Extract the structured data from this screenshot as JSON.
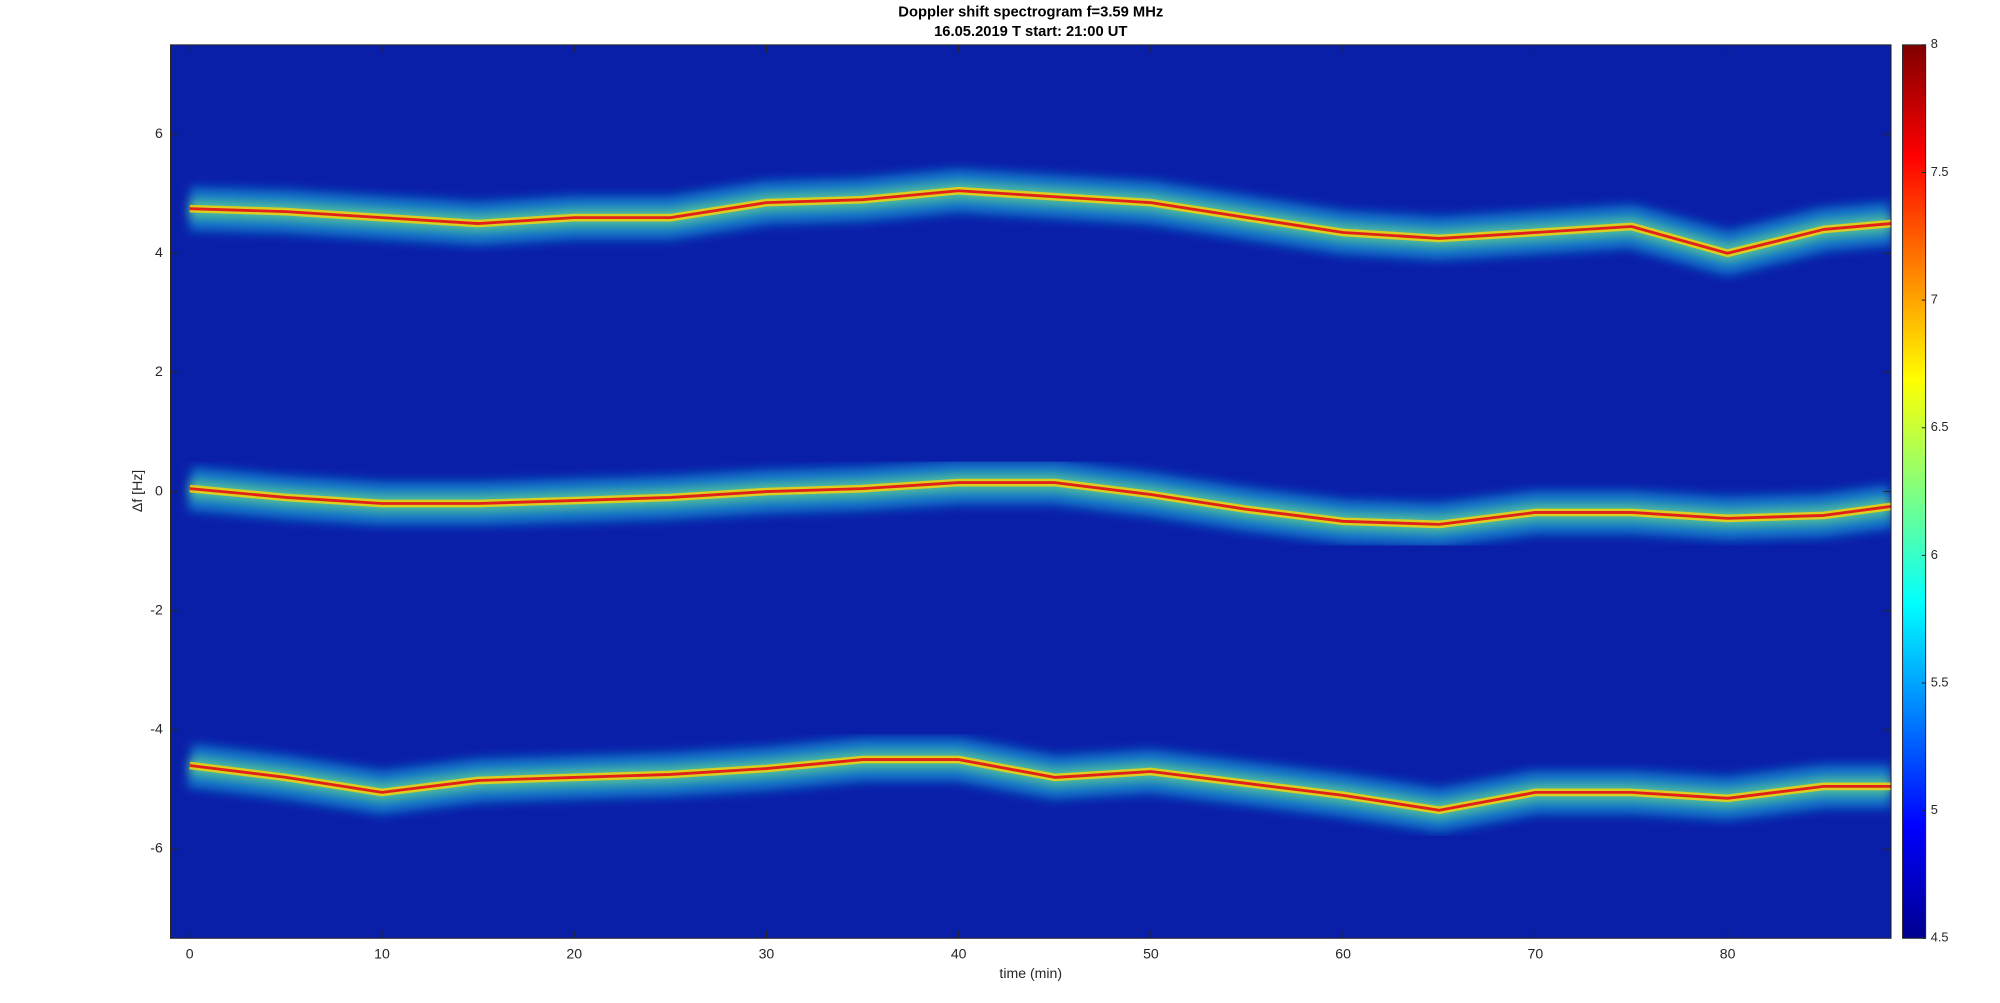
{
  "chart_data": {
    "type": "line",
    "title": "Doppler shift spectrogram f=3.59 MHz",
    "subtitle": "16.05.2019   T start: 21:00 UT",
    "xlabel": "time (min)",
    "ylabel": "Δf [Hz]",
    "x": [
      0,
      5,
      10,
      15,
      20,
      25,
      30,
      35,
      40,
      45,
      50,
      55,
      60,
      65,
      70,
      75,
      80,
      85,
      88.5
    ],
    "series": [
      {
        "color": "#e0201a",
        "values": [
          4.75,
          4.7,
          4.6,
          4.5,
          4.6,
          4.6,
          4.85,
          4.9,
          5.05,
          4.95,
          4.85,
          4.6,
          4.35,
          4.25,
          4.35,
          4.45,
          4.0,
          4.4,
          4.5
        ]
      },
      {
        "color": "#e0201a",
        "values": [
          0.05,
          -0.1,
          -0.2,
          -0.2,
          -0.15,
          -0.1,
          0,
          0.05,
          0.15,
          0.15,
          -0.05,
          -0.3,
          -0.5,
          -0.55,
          -0.35,
          -0.35,
          -0.45,
          -0.4,
          -0.25
        ]
      },
      {
        "color": "#e0201a",
        "values": [
          -4.6,
          -4.8,
          -5.05,
          -4.85,
          -4.8,
          -4.75,
          -4.65,
          -4.5,
          -4.5,
          -4.8,
          -4.7,
          -4.9,
          -5.1,
          -5.35,
          -5.05,
          -5.05,
          -5.15,
          -4.95,
          -4.95
        ]
      }
    ],
    "xlim": [
      -1,
      88.5
    ],
    "ylim": [
      -7.5,
      7.5
    ],
    "xticks": [
      0,
      10,
      20,
      30,
      40,
      50,
      60,
      70,
      80
    ],
    "yticks": [
      -6,
      -4,
      -2,
      0,
      2,
      4,
      6
    ],
    "background": "#0a1fa8",
    "colorbar": {
      "lim": [
        4.5,
        8
      ],
      "ticks": [
        4.5,
        5,
        5.5,
        6,
        6.5,
        7,
        7.5,
        8
      ],
      "colormap": [
        "#00008f",
        "#0000ff",
        "#0080ff",
        "#00ffff",
        "#80ff80",
        "#ffff00",
        "#ff8000",
        "#ff0000",
        "#800000"
      ]
    }
  }
}
